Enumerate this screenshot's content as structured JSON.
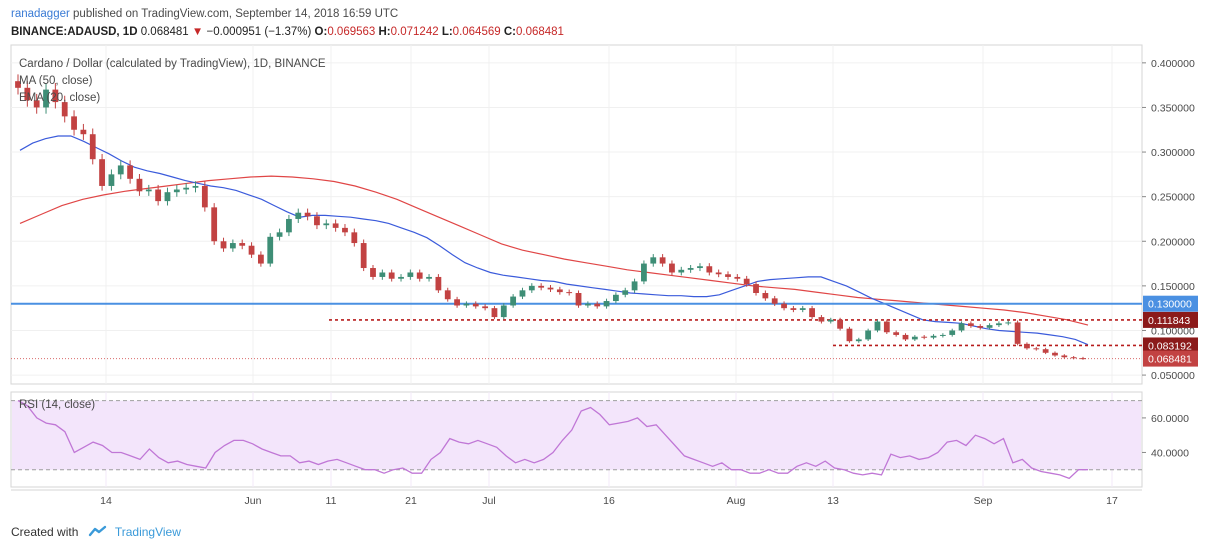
{
  "header": {
    "author": "ranadagger",
    "published_text": "published on TradingView.com, September 14, 2018 16:59 UTC",
    "symbol": "BINANCE:ADAUSD, 1D",
    "last": "0.068481",
    "change": "−0.000951 (−1.37%)",
    "o_label": "O:",
    "o_value": "0.069563",
    "h_label": "H:",
    "h_value": "0.071242",
    "l_label": "L:",
    "l_value": "0.064569",
    "c_label": "C:",
    "c_value": "0.068481"
  },
  "legend": {
    "title": "Cardano / Dollar (calculated by TradingView), 1D, BINANCE",
    "ma": "MA (50, close)",
    "ema": "EMA (20, close)",
    "rsi": "RSI (14, close)"
  },
  "footer": {
    "created": "Created with",
    "brand": "TradingView"
  },
  "colors": {
    "up": "#3e8e76",
    "down": "#c24242",
    "ma": "#e04646",
    "ema": "#3b5bdb",
    "support": "#4a90e2",
    "rsi_line": "#c077d6",
    "rsi_band": "#f3e5fb"
  },
  "chart_data": {
    "type": "candlestick",
    "x_tick_labels": [
      "14",
      "Jun",
      "11",
      "21",
      "Jul",
      "16",
      "Aug",
      "13",
      "Sep",
      "17"
    ],
    "y_tick_labels": [
      "0.400000",
      "0.350000",
      "0.300000",
      "0.250000",
      "0.200000",
      "0.150000",
      "0.100000",
      "0.050000"
    ],
    "ylim": [
      0.04,
      0.42
    ],
    "price_labels": [
      {
        "text": "0.130000",
        "value": 0.13,
        "style": "horizontal-support"
      },
      {
        "text": "0.111843",
        "value": 0.111843,
        "style": "dashed"
      },
      {
        "text": "0.083192",
        "value": 0.083192,
        "style": "dashed"
      },
      {
        "text": "0.068481",
        "value": 0.068481,
        "style": "last-price"
      }
    ],
    "closes": [
      0.372,
      0.358,
      0.35,
      0.37,
      0.356,
      0.34,
      0.325,
      0.32,
      0.292,
      0.262,
      0.275,
      0.285,
      0.27,
      0.256,
      0.258,
      0.245,
      0.255,
      0.258,
      0.26,
      0.262,
      0.238,
      0.2,
      0.192,
      0.198,
      0.195,
      0.185,
      0.175,
      0.205,
      0.21,
      0.225,
      0.232,
      0.228,
      0.218,
      0.22,
      0.215,
      0.21,
      0.198,
      0.17,
      0.16,
      0.165,
      0.158,
      0.16,
      0.165,
      0.158,
      0.16,
      0.145,
      0.135,
      0.128,
      0.13,
      0.127,
      0.125,
      0.115,
      0.128,
      0.138,
      0.145,
      0.15,
      0.148,
      0.146,
      0.143,
      0.142,
      0.128,
      0.13,
      0.127,
      0.133,
      0.14,
      0.145,
      0.155,
      0.175,
      0.182,
      0.175,
      0.165,
      0.168,
      0.17,
      0.172,
      0.165,
      0.163,
      0.16,
      0.158,
      0.152,
      0.142,
      0.136,
      0.13,
      0.125,
      0.123,
      0.125,
      0.115,
      0.11,
      0.112,
      0.102,
      0.088,
      0.09,
      0.1,
      0.11,
      0.098,
      0.095,
      0.09,
      0.093,
      0.092,
      0.094,
      0.095,
      0.1,
      0.108,
      0.105,
      0.103,
      0.106,
      0.108,
      0.109,
      0.085,
      0.08,
      0.079,
      0.075,
      0.072,
      0.07,
      0.069,
      0.0685
    ],
    "ema20": [
      0.302,
      0.31,
      0.315,
      0.318,
      0.318,
      0.312,
      0.305,
      0.298,
      0.29,
      0.283,
      0.279,
      0.276,
      0.272,
      0.268,
      0.265,
      0.262,
      0.26,
      0.257,
      0.252,
      0.247,
      0.24,
      0.233,
      0.227,
      0.229,
      0.229,
      0.228,
      0.227,
      0.225,
      0.223,
      0.22,
      0.215,
      0.21,
      0.204,
      0.195,
      0.185,
      0.176,
      0.17,
      0.165,
      0.162,
      0.16,
      0.158,
      0.156,
      0.155,
      0.152,
      0.15,
      0.148,
      0.146,
      0.144,
      0.142,
      0.141,
      0.14,
      0.139,
      0.139,
      0.138,
      0.138,
      0.14,
      0.145,
      0.15,
      0.155,
      0.157,
      0.158,
      0.159,
      0.16,
      0.16,
      0.155,
      0.15,
      0.143,
      0.136,
      0.13,
      0.124,
      0.118,
      0.112,
      0.11,
      0.109,
      0.108,
      0.105,
      0.102,
      0.1,
      0.099,
      0.098,
      0.097,
      0.095,
      0.093,
      0.09,
      0.084
    ],
    "ma50": [
      0.22,
      0.23,
      0.24,
      0.247,
      0.252,
      0.256,
      0.259,
      0.262,
      0.265,
      0.268,
      0.27,
      0.272,
      0.273,
      0.272,
      0.27,
      0.267,
      0.262,
      0.255,
      0.247,
      0.237,
      0.227,
      0.217,
      0.207,
      0.197,
      0.19,
      0.185,
      0.18,
      0.176,
      0.172,
      0.168,
      0.165,
      0.162,
      0.159,
      0.156,
      0.153,
      0.15,
      0.148,
      0.146,
      0.143,
      0.14,
      0.137,
      0.135,
      0.133,
      0.131,
      0.129,
      0.127,
      0.125,
      0.123,
      0.12,
      0.116,
      0.112,
      0.106
    ],
    "rsi_ticks": [
      "60.0000",
      "40.0000"
    ],
    "rsi_bands": [
      70,
      30
    ],
    "rsi_ylim": [
      20,
      75
    ],
    "rsi_values": [
      70,
      67,
      60,
      57,
      56,
      52,
      40,
      43,
      46,
      44,
      40,
      40,
      38,
      36,
      42,
      37,
      34,
      35,
      33,
      32,
      31,
      40,
      44,
      47,
      47,
      45,
      42,
      40,
      38,
      38,
      34,
      35,
      33,
      35,
      36,
      34,
      32,
      30,
      30,
      28,
      30,
      31,
      28,
      28,
      36,
      40,
      48,
      46,
      45,
      47,
      45,
      43,
      38,
      34,
      36,
      34,
      36,
      40,
      47,
      53,
      64,
      66,
      62,
      56,
      57,
      58,
      60,
      55,
      56,
      50,
      44,
      38,
      36,
      34,
      32,
      34,
      30,
      30,
      28,
      28,
      30,
      28,
      28,
      32,
      34,
      32,
      35,
      31,
      30,
      28,
      27,
      28,
      27,
      39,
      37,
      38,
      36,
      37,
      40,
      46,
      47,
      44,
      50,
      48,
      45,
      48,
      34,
      36,
      31,
      29,
      28,
      27,
      25,
      30,
      30
    ]
  }
}
